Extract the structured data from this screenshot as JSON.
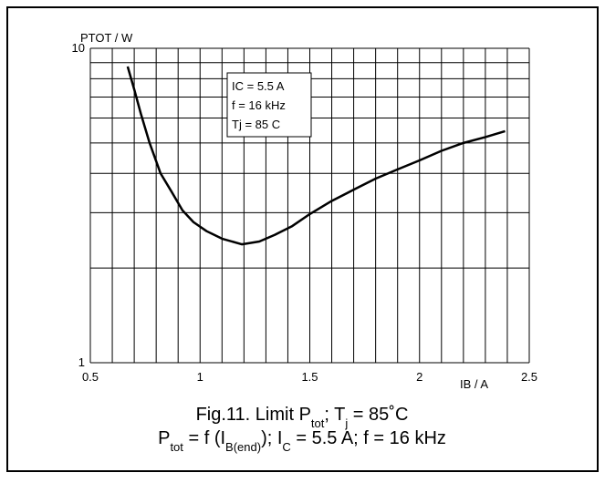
{
  "chart_data": {
    "type": "line",
    "ylabel": "PTOT / W",
    "xlabel": "IB / A",
    "x": [
      0.67,
      0.7,
      0.73,
      0.77,
      0.82,
      0.87,
      0.92,
      0.97,
      1.03,
      1.1,
      1.19,
      1.27,
      1.34,
      1.42,
      1.5,
      1.6,
      1.7,
      1.8,
      1.9,
      2.0,
      2.1,
      2.2,
      2.3,
      2.39
    ],
    "values": [
      8.75,
      7.4,
      6.2,
      5.0,
      4.0,
      3.5,
      3.05,
      2.8,
      2.62,
      2.48,
      2.38,
      2.43,
      2.55,
      2.72,
      2.97,
      3.27,
      3.55,
      3.85,
      4.12,
      4.4,
      4.72,
      5.0,
      5.22,
      5.45
    ],
    "color": "#000000",
    "xlim": [
      0.5,
      2.5
    ],
    "xticks": [
      0.5,
      1,
      1.5,
      2,
      2.5
    ],
    "xminor_ticks": [
      0.6,
      0.7,
      0.8,
      0.9,
      1.1,
      1.2,
      1.3,
      1.4,
      1.6,
      1.7,
      1.8,
      1.9,
      2.1,
      2.2,
      2.3,
      2.4
    ],
    "ylim": [
      1,
      10
    ],
    "yticks": [
      1,
      10
    ],
    "yminor_ticks": [
      2,
      3,
      4,
      5,
      6,
      7,
      8,
      9
    ],
    "log_y": true,
    "grid": true,
    "annotation": [
      "IC = 5.5 A",
      "f = 16 kHz",
      "Tj = 85 C"
    ],
    "caption": [
      [
        {
          "text": "Fig.11.   Limit P"
        },
        {
          "text": "tot",
          "sub": true
        },
        {
          "text": "; T"
        },
        {
          "text": "j",
          "sub": true
        },
        {
          "text": " = 85˚C"
        }
      ],
      [
        {
          "text": "P"
        },
        {
          "text": "tot",
          "sub": true
        },
        {
          "text": " = f (I"
        },
        {
          "text": "B(end)",
          "sub": true
        },
        {
          "text": "); I"
        },
        {
          "text": "C",
          "sub": true
        },
        {
          "text": " = 5.5 A; f = 16 kHz"
        }
      ]
    ]
  }
}
